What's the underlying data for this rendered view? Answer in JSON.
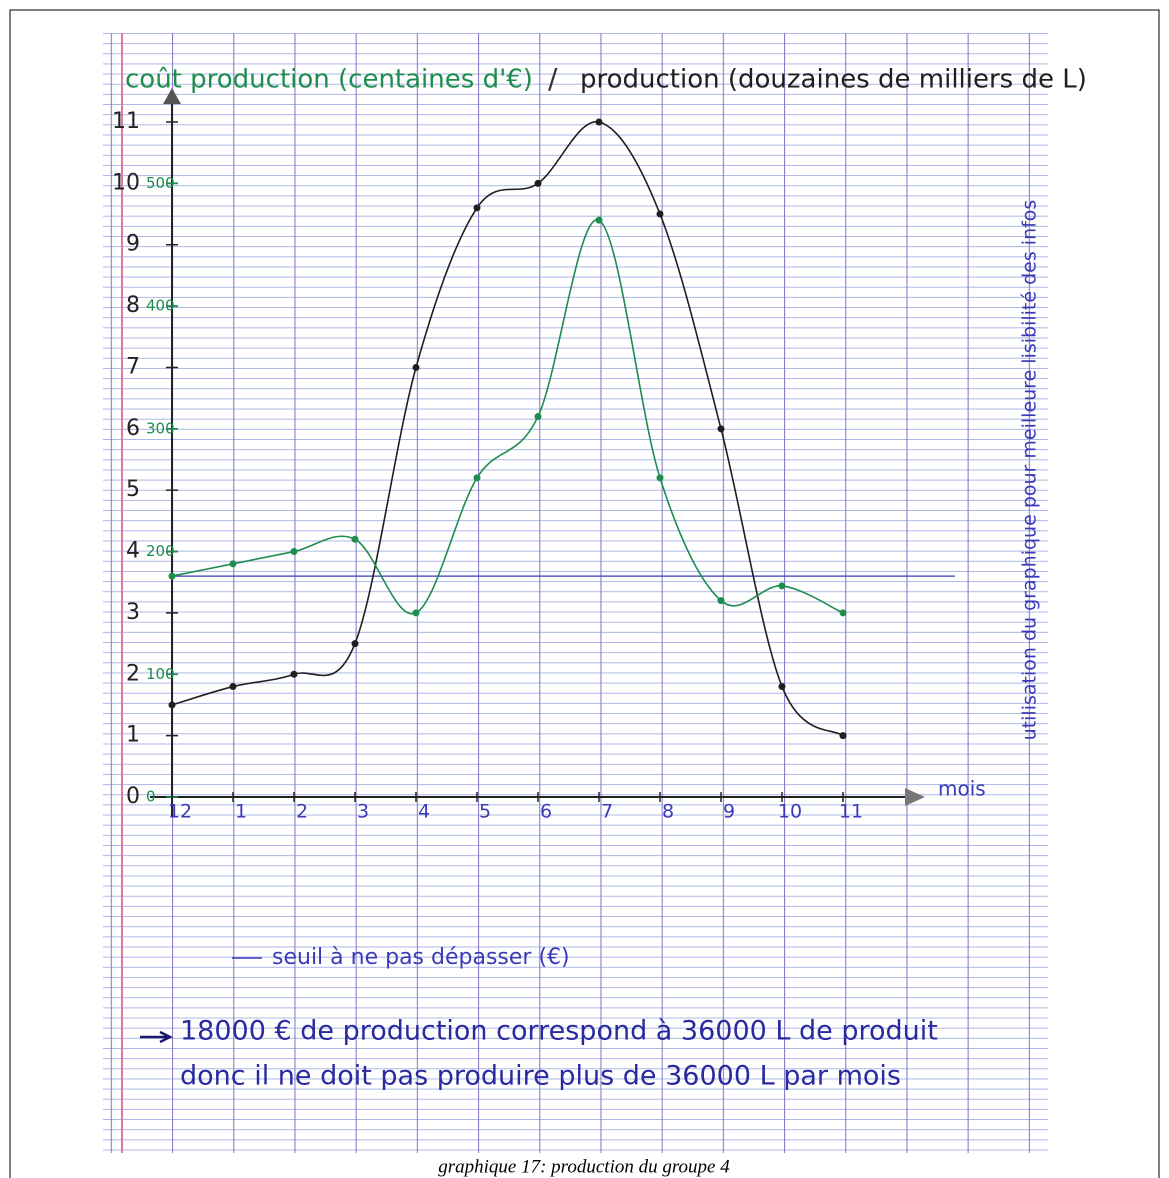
{
  "chart_data": {
    "type": "line",
    "title": [
      "coût production (centaines d'€)",
      "/",
      "production (douzaines de milliers de L)"
    ],
    "side_note": "utilisation du graphique pour meilleure lisibilité des infos",
    "x_label": "mois",
    "categories": [
      "12",
      "1",
      "2",
      "3",
      "4",
      "5",
      "6",
      "7",
      "8",
      "9",
      "10",
      "11"
    ],
    "series": [
      {
        "color": "#1f1f1f",
        "values": [
          1.5,
          1.8,
          2.0,
          2.5,
          7.0,
          9.6,
          10.0,
          11.0,
          9.5,
          6.0,
          1.8,
          1.0
        ]
      },
      {
        "color": "#1e8c4e",
        "axis": "y2",
        "values": [
          180,
          190,
          200,
          210,
          150,
          260,
          310,
          470,
          260,
          160,
          172,
          150
        ]
      }
    ],
    "ylim": [
      0,
      11
    ],
    "yticks": [
      0,
      1,
      2,
      3,
      4,
      5,
      6,
      7,
      8,
      9,
      10,
      11
    ],
    "y2lim": [
      0,
      550
    ],
    "y2ticks": [
      0,
      100,
      200,
      300,
      400,
      500
    ],
    "threshold": {
      "value": 180,
      "axis": "y2",
      "color": "#3a3ab8",
      "label": "seuil à ne pas dépasser (€)"
    },
    "notes": [
      "18000 € de production correspond à 36000 L de produit",
      "donc il ne doit pas produire plus de 36000 L par mois"
    ],
    "caption": "graphique 17: production du groupe 4"
  }
}
